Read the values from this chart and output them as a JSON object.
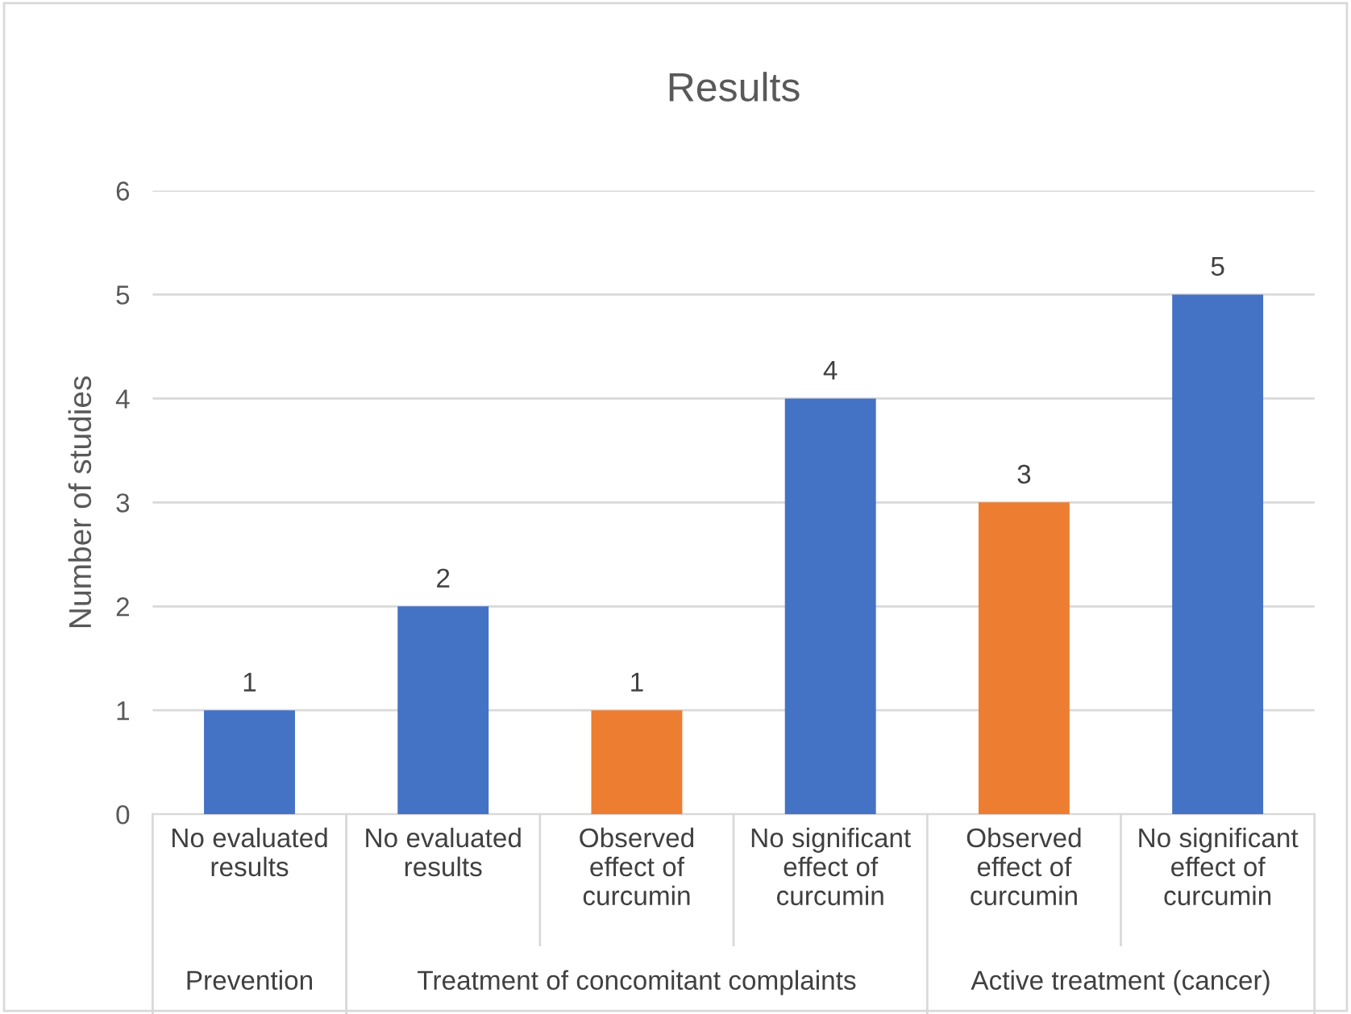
{
  "chart_data": {
    "type": "bar",
    "title": "Results",
    "ylabel": "Number of studies",
    "categories": [
      "No evaluated\nresults",
      "No evaluated\nresults",
      "Observed\neffect of\ncurcumin",
      "No significant\neffect of\ncurcumin",
      "Observed\neffect of\ncurcumin",
      "No significant\neffect of\ncurcumin"
    ],
    "values": [
      1,
      2,
      1,
      4,
      3,
      5
    ],
    "colors": [
      "#4472c4",
      "#4472c4",
      "#ed7d31",
      "#4472c4",
      "#ed7d31",
      "#4472c4"
    ],
    "ylim": [
      0,
      6
    ],
    "yticks": [
      0,
      1,
      2,
      3,
      4,
      5,
      6
    ],
    "grid": "y",
    "data_labels": true,
    "annotations": [
      "Prevention",
      "Treatment of concomitant complaints",
      "Active treatment (cancer)"
    ]
  }
}
